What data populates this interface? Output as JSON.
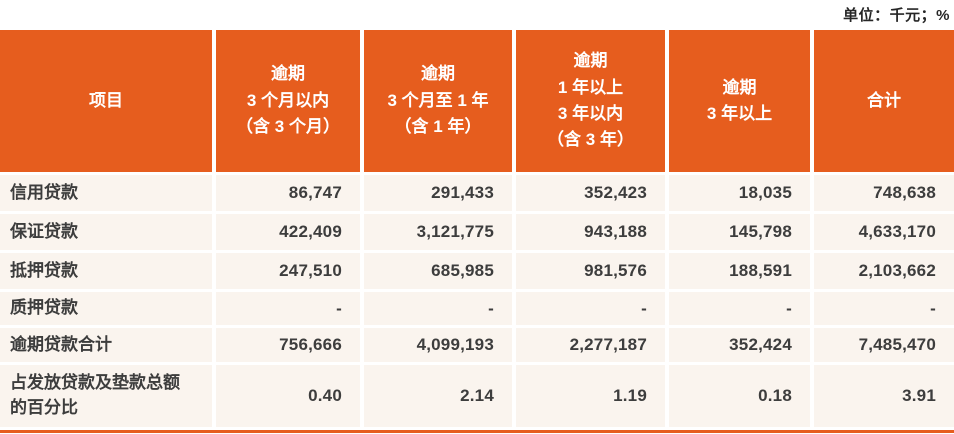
{
  "unit_note": "单位：千元；%",
  "colors": {
    "accent_orange": "#E65D1E",
    "row_background": "#FAF4EE",
    "header_text": "#FFFFFF",
    "body_text": "#3D3D3D"
  },
  "table": {
    "columns": [
      {
        "label": "项目"
      },
      {
        "label": "逾期\n3 个月以内\n（含 3 个月）"
      },
      {
        "label": "逾期\n3 个月至 1 年\n（含 1 年）"
      },
      {
        "label": "逾期\n1 年以上\n3 年以内\n（含 3 年）"
      },
      {
        "label": "逾期\n3 年以上"
      },
      {
        "label": "合计"
      }
    ],
    "rows": [
      {
        "label": "信用贷款",
        "values": [
          "86,747",
          "291,433",
          "352,423",
          "18,035",
          "748,638"
        ]
      },
      {
        "label": "保证贷款",
        "values": [
          "422,409",
          "3,121,775",
          "943,188",
          "145,798",
          "4,633,170"
        ]
      },
      {
        "label": "抵押贷款",
        "values": [
          "247,510",
          "685,985",
          "981,576",
          "188,591",
          "2,103,662"
        ]
      },
      {
        "label": "质押贷款",
        "values": [
          "-",
          "-",
          "-",
          "-",
          "-"
        ]
      },
      {
        "label": "逾期贷款合计",
        "values": [
          "756,666",
          "4,099,193",
          "2,277,187",
          "352,424",
          "7,485,470"
        ]
      },
      {
        "label": "占发放贷款及垫款总额\n的百分比",
        "values": [
          "0.40",
          "2.14",
          "1.19",
          "0.18",
          "3.91"
        ]
      }
    ]
  }
}
